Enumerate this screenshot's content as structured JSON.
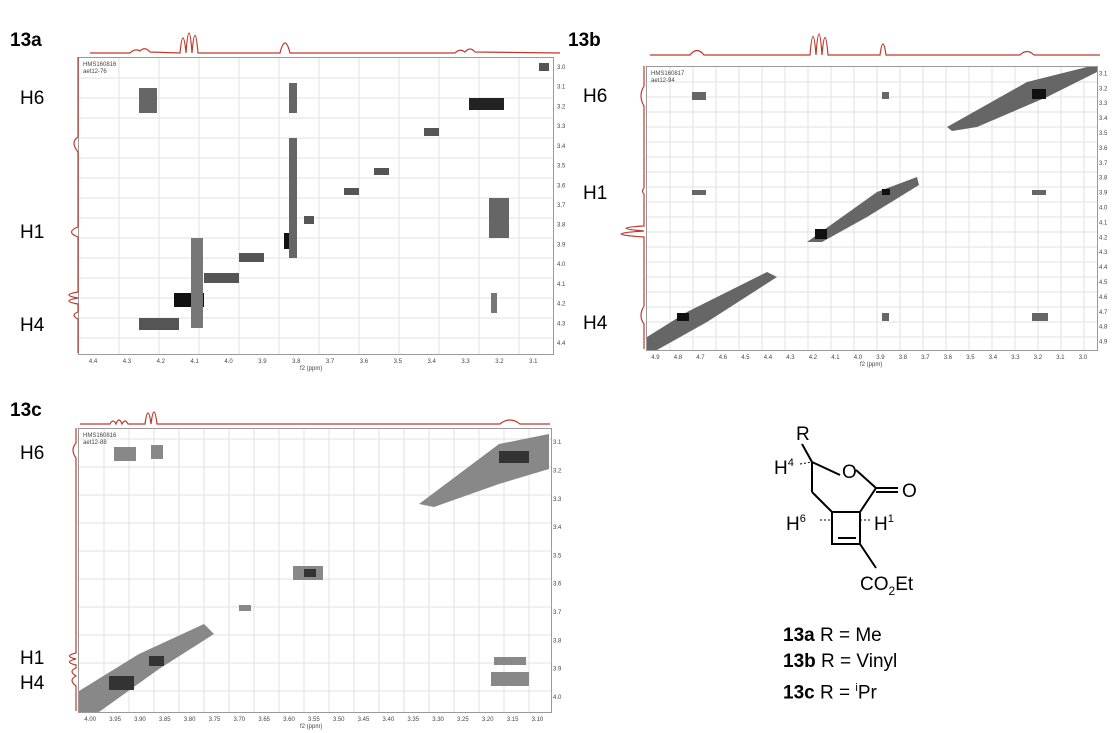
{
  "panels": {
    "a": {
      "label": "13a",
      "inst": [
        "HMS160816",
        "aet12-76"
      ],
      "xticks": [
        "4.4",
        "4.3",
        "4.2",
        "4.1",
        "4.0",
        "3.9",
        "3.8",
        "3.7",
        "3.6",
        "3.5",
        "3.4",
        "3.3",
        "3.2",
        "3.1"
      ],
      "yticks": [
        "3.0",
        "3.1",
        "3.2",
        "3.3",
        "3.4",
        "3.5",
        "3.6",
        "3.7",
        "3.8",
        "3.9",
        "4.0",
        "4.1",
        "4.2",
        "4.3",
        "4.4"
      ],
      "xaxis_label": "f2 (ppm)",
      "row_labels": {
        "h6": "H6",
        "h1": "H1",
        "h4": "H4"
      }
    },
    "b": {
      "label": "13b",
      "inst": [
        "HMS160817",
        "aet12-94"
      ],
      "xticks": [
        "4.9",
        "4.8",
        "4.7",
        "4.6",
        "4.5",
        "4.4",
        "4.3",
        "4.2",
        "4.1",
        "4.0",
        "3.9",
        "3.8",
        "3.7",
        "3.6",
        "3.5",
        "3.4",
        "3.3",
        "3.2",
        "3.1",
        "3.0"
      ],
      "yticks": [
        "3.1",
        "3.2",
        "3.3",
        "3.4",
        "3.5",
        "3.6",
        "3.7",
        "3.8",
        "3.9",
        "4.0",
        "4.1",
        "4.2",
        "4.3",
        "4.4",
        "4.5",
        "4.6",
        "4.7",
        "4.8",
        "4.9"
      ],
      "xaxis_label": "f2 (ppm)",
      "row_labels": {
        "h6": "H6",
        "h1": "H1",
        "h4": "H4"
      }
    },
    "c": {
      "label": "13c",
      "inst": [
        "HMS160816",
        "aet12-88"
      ],
      "xticks": [
        "4.00",
        "3.95",
        "3.90",
        "3.85",
        "3.80",
        "3.75",
        "3.70",
        "3.65",
        "3.60",
        "3.55",
        "3.50",
        "3.45",
        "3.40",
        "3.35",
        "3.30",
        "3.25",
        "3.20",
        "3.15",
        "3.10"
      ],
      "yticks": [
        "3.1",
        "3.2",
        "3.3",
        "3.4",
        "3.5",
        "3.6",
        "3.7",
        "3.8",
        "3.9",
        "4.0"
      ],
      "xaxis_label": "f2 (ppm)",
      "row_labels": {
        "h6": "H6",
        "h1": "H1",
        "h4": "H4"
      }
    }
  },
  "structure": {
    "r": "R",
    "o_ring": "O",
    "o_carbonyl": "O",
    "h4": "H",
    "h4_sup": "4",
    "h6": "H",
    "h6_sup": "6",
    "h1": "H",
    "h1_sup": "1",
    "ester_a": "CO",
    "ester_sub": "2",
    "ester_b": "Et"
  },
  "captions": [
    {
      "id": "13a",
      "text": " R = Me",
      "sup": ""
    },
    {
      "id": "13b",
      "text": " R = Vinyl",
      "sup": ""
    },
    {
      "id": "13c",
      "text": " R = ",
      "sup": "i",
      "tail": "Pr"
    }
  ]
}
